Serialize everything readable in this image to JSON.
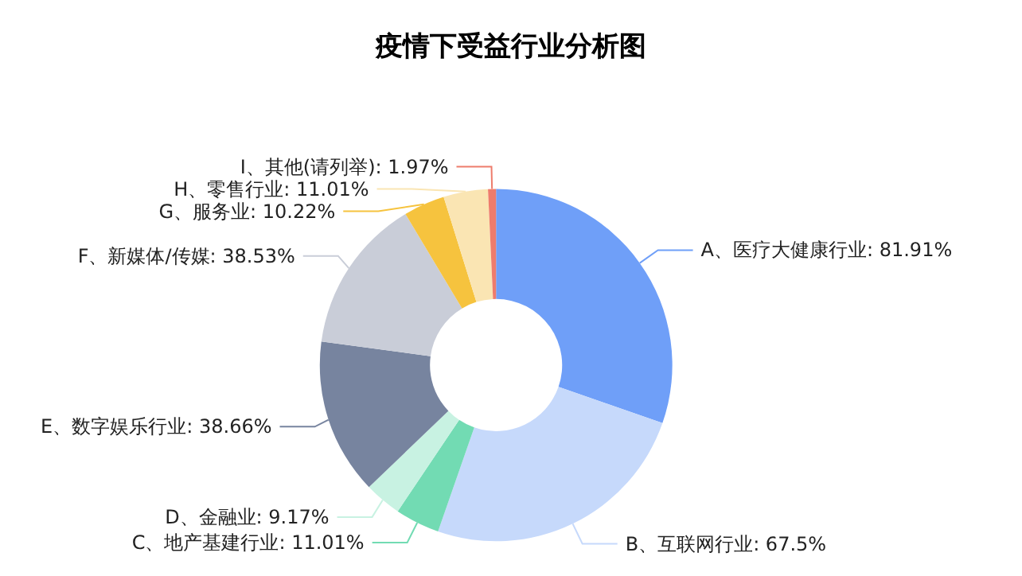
{
  "chart_data": {
    "type": "donut",
    "title": "疫情下受益行业分析图",
    "categories": [
      "A、医疗大健康行业",
      "B、互联网行业",
      "C、地产基建行业",
      "D、金融业",
      "E、数字娱乐行业",
      "F、新媒体/传媒",
      "G、服务业",
      "H、零售行业",
      "I、其他(请列举)"
    ],
    "values": [
      81.91,
      67.5,
      11.01,
      9.17,
      38.66,
      38.53,
      10.22,
      11.01,
      1.97
    ],
    "value_labels": [
      "81.91%",
      "67.5%",
      "11.01%",
      "9.17%",
      "38.66%",
      "38.53%",
      "10.22%",
      "11.01%",
      "1.97%"
    ],
    "colors": [
      "#6f9ff8",
      "#c6d9fb",
      "#72dbb3",
      "#c8f2e2",
      "#77849f",
      "#c9cdd8",
      "#f6c33e",
      "#fae5b3",
      "#ee7c6c"
    ],
    "legend": false
  }
}
